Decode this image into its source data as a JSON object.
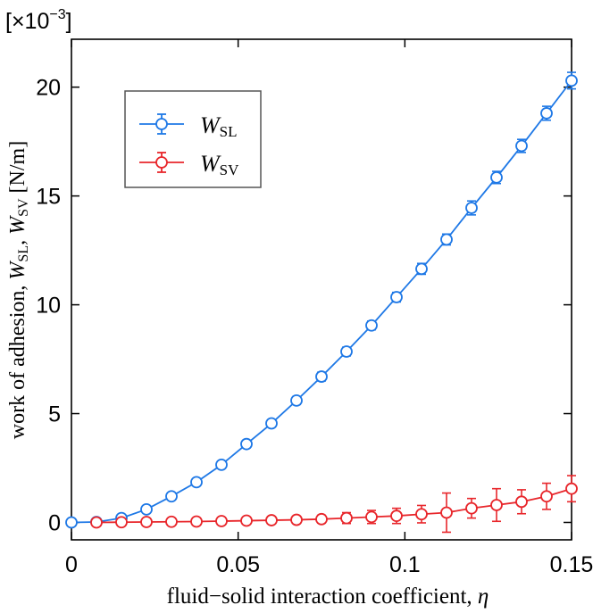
{
  "chart_data": {
    "type": "line",
    "exponent_label": "[×10",
    "exponent_power": "−3",
    "exponent_close": "]",
    "x_tick_labels": [
      "0",
      "0.05",
      "0.1",
      "0.15"
    ],
    "y_tick_labels": [
      "0",
      "5",
      "10",
      "15",
      "20"
    ],
    "x_ticks": [
      0,
      0.05,
      0.1,
      0.15
    ],
    "y_ticks": [
      0,
      5,
      10,
      15,
      20
    ],
    "xlim": [
      0,
      0.15
    ],
    "ylim": [
      -0.8,
      22.2
    ],
    "xlabel": {
      "text": "fluid−solid interaction coefficient, ",
      "symbol": "η"
    },
    "ylabel": {
      "prefix": "work of adhesion, ",
      "w1": "W",
      "s1": "SL",
      "sep": ", ",
      "w2": "W",
      "s2": "SV",
      "unit": " [N/m]"
    },
    "legend_position": "top-left",
    "series": [
      {
        "key": "sl",
        "name": "W",
        "sub": "SL",
        "color": "#1e78e6",
        "x": [
          0,
          0.0075,
          0.015,
          0.0225,
          0.03,
          0.0375,
          0.045,
          0.0525,
          0.06,
          0.0675,
          0.075,
          0.0825,
          0.09,
          0.0975,
          0.105,
          0.1125,
          0.12,
          0.1275,
          0.135,
          0.1425,
          0.15
        ],
        "y": [
          0,
          0.02,
          0.2,
          0.6,
          1.2,
          1.85,
          2.65,
          3.6,
          4.55,
          5.6,
          6.7,
          7.85,
          9.05,
          10.35,
          11.65,
          13.0,
          14.45,
          15.85,
          17.3,
          18.8,
          20.3
        ],
        "err": [
          0,
          0,
          0.1,
          0.12,
          0.13,
          0.13,
          0.15,
          0.17,
          0.17,
          0.18,
          0.2,
          0.2,
          0.2,
          0.22,
          0.25,
          0.25,
          0.32,
          0.28,
          0.3,
          0.32,
          0.38
        ]
      },
      {
        "key": "sv",
        "name": "W",
        "sub": "SV",
        "color": "#e8262b",
        "x": [
          0.0075,
          0.015,
          0.0225,
          0.03,
          0.0375,
          0.045,
          0.0525,
          0.06,
          0.0675,
          0.075,
          0.0825,
          0.09,
          0.0975,
          0.105,
          0.1125,
          0.12,
          0.1275,
          0.135,
          0.1425,
          0.15
        ],
        "y": [
          0,
          0.01,
          0.02,
          0.03,
          0.04,
          0.06,
          0.08,
          0.1,
          0.12,
          0.15,
          0.2,
          0.25,
          0.3,
          0.38,
          0.45,
          0.65,
          0.8,
          0.95,
          1.2,
          1.55
        ],
        "err": [
          0.02,
          0.03,
          0.04,
          0.05,
          0.06,
          0.08,
          0.1,
          0.12,
          0.14,
          0.18,
          0.25,
          0.3,
          0.35,
          0.4,
          0.9,
          0.45,
          0.75,
          0.55,
          0.6,
          0.6
        ]
      }
    ]
  }
}
